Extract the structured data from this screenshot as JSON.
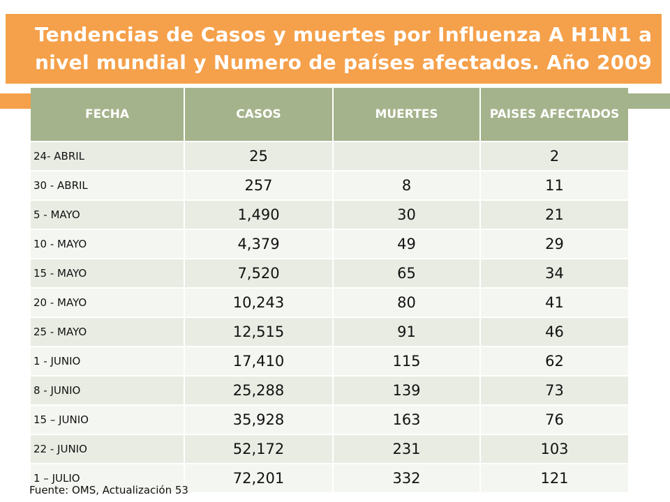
{
  "title": "Tendencias de Casos y muertes por Influenza A H1N1 a nivel mundial y Numero de países afectados. Año 2009",
  "colors": {
    "title_band": "#F5A04A",
    "header_band": "#A4B38B",
    "row_odd": "#E9ECE3",
    "row_even": "#F4F6F1"
  },
  "table": {
    "headers": [
      "FECHA",
      "CASOS",
      "MUERTES",
      "PAISES AFECTADOS"
    ],
    "rows": [
      {
        "fecha": "24- ABRIL",
        "casos": "25",
        "muertes": "",
        "paises": "2"
      },
      {
        "fecha": "30 - ABRIL",
        "casos": "257",
        "muertes": "8",
        "paises": "11"
      },
      {
        "fecha": "5 - MAYO",
        "casos": "1,490",
        "muertes": "30",
        "paises": "21"
      },
      {
        "fecha": "10 - MAYO",
        "casos": "4,379",
        "muertes": "49",
        "paises": "29"
      },
      {
        "fecha": "15 - MAYO",
        "casos": "7,520",
        "muertes": "65",
        "paises": "34"
      },
      {
        "fecha": "20 - MAYO",
        "casos": "10,243",
        "muertes": "80",
        "paises": "41"
      },
      {
        "fecha": "25 - MAYO",
        "casos": "12,515",
        "muertes": "91",
        "paises": "46"
      },
      {
        "fecha": "1 - JUNIO",
        "casos": "17,410",
        "muertes": "115",
        "paises": "62"
      },
      {
        "fecha": "8 - JUNIO",
        "casos": "25,288",
        "muertes": "139",
        "paises": "73"
      },
      {
        "fecha": "15 – JUNIO",
        "casos": "35,928",
        "muertes": "163",
        "paises": "76"
      },
      {
        "fecha": "22 - JUNIO",
        "casos": "52,172",
        "muertes": "231",
        "paises": "103"
      },
      {
        "fecha": "1 – JULIO",
        "casos": "72,201",
        "muertes": "332",
        "paises": "121"
      }
    ]
  },
  "source": "Fuente: OMS, Actualización 53"
}
